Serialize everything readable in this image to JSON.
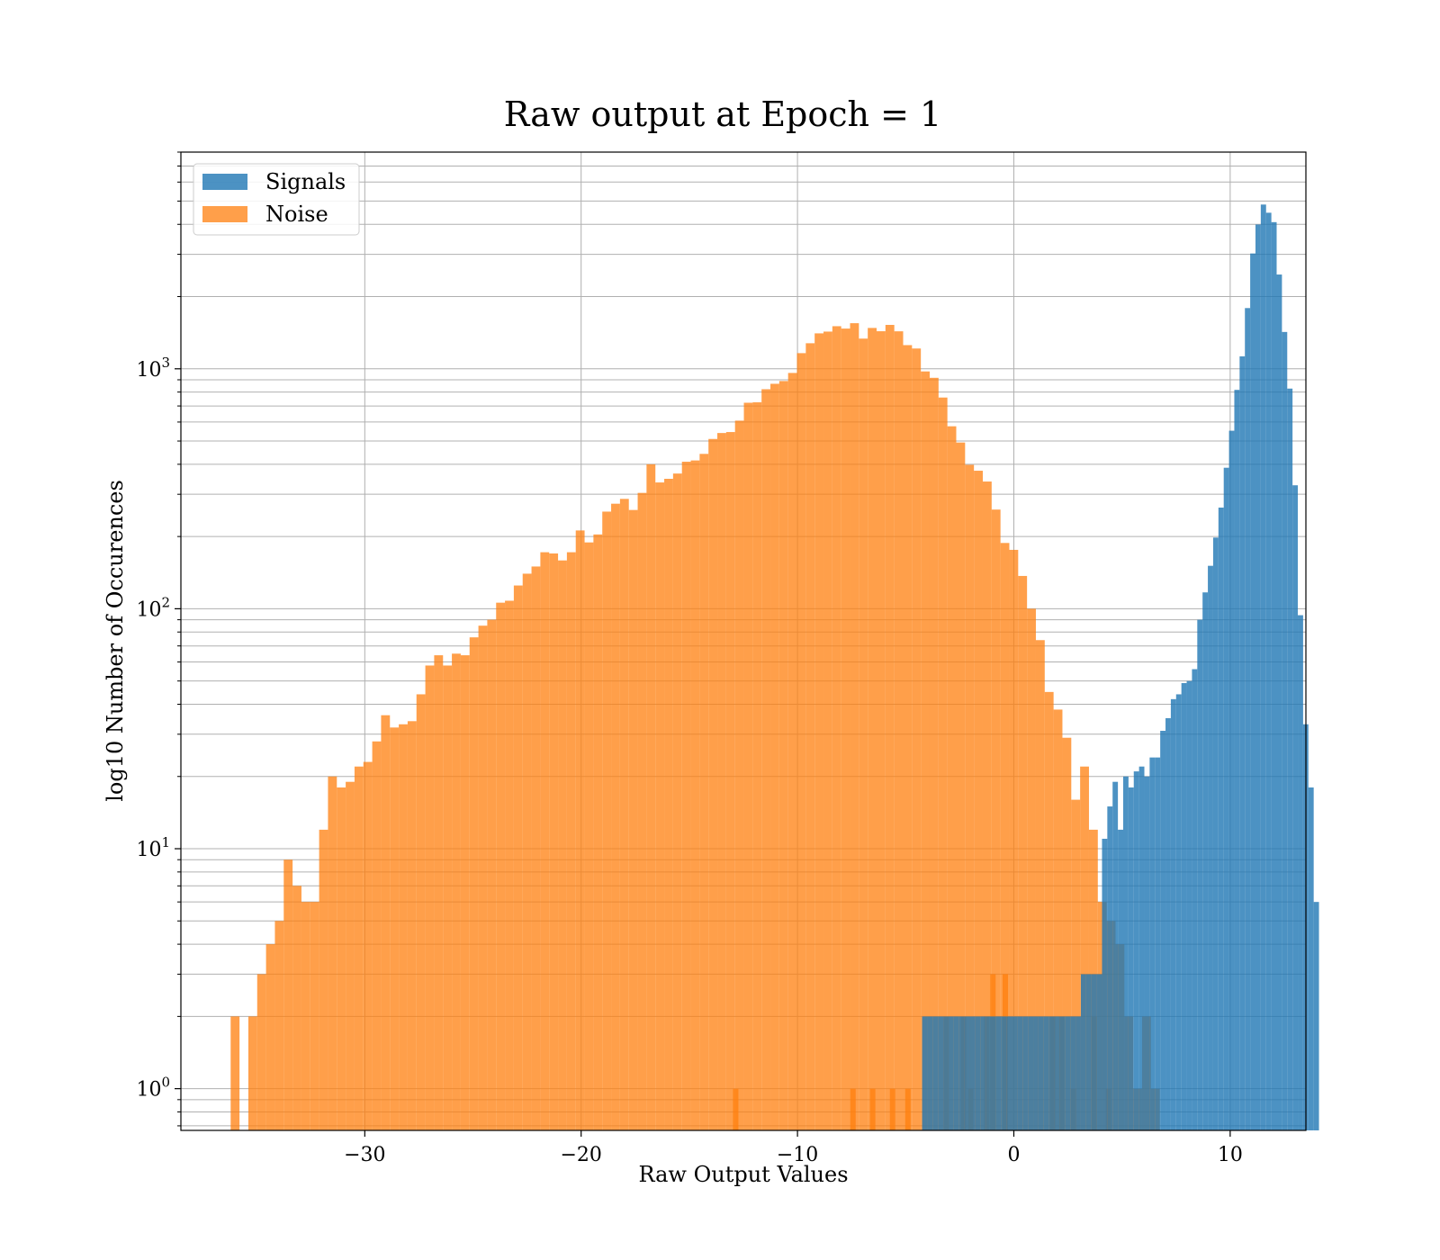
{
  "chart_data": {
    "type": "bar",
    "title": "Raw output at Epoch = 1",
    "xlabel": "Raw Output Values",
    "ylabel": "log10 Number of Occurences",
    "xlim": [
      -38.5,
      13.5
    ],
    "ylim": [
      0.67,
      8000
    ],
    "yscale": "log",
    "grid": true,
    "legend_position": "top-left",
    "x_ticks": [
      {
        "value": -30,
        "label": "−30"
      },
      {
        "value": -20,
        "label": "−20"
      },
      {
        "value": -10,
        "label": "−10"
      },
      {
        "value": 0,
        "label": "0"
      },
      {
        "value": 10,
        "label": "10"
      }
    ],
    "y_ticks": [
      {
        "value": 1,
        "base": "10",
        "exp": "0"
      },
      {
        "value": 10,
        "base": "10",
        "exp": "1"
      },
      {
        "value": 100,
        "base": "10",
        "exp": "2"
      },
      {
        "value": 1000,
        "base": "10",
        "exp": "3"
      }
    ],
    "series": [
      {
        "name": "Noise",
        "color": "#ff7f0e",
        "opacity": 0.75,
        "bin_start": -36.2,
        "bin_width": 0.409,
        "values": [
          2,
          0,
          2,
          3,
          4,
          5,
          9,
          7,
          6,
          6,
          12,
          20,
          18,
          19,
          22,
          23,
          28,
          36,
          32,
          33,
          34,
          44,
          58,
          64,
          58,
          65,
          64,
          76,
          85,
          90,
          106,
          108,
          125,
          140,
          150,
          172,
          170,
          159,
          172,
          212,
          189,
          204,
          254,
          274,
          287,
          258,
          304,
          400,
          336,
          348,
          366,
          410,
          415,
          442,
          510,
          540,
          545,
          608,
          722,
          725,
          822,
          866,
          889,
          961,
          1162,
          1278,
          1405,
          1429,
          1505,
          1471,
          1549,
          1336,
          1480,
          1434,
          1524,
          1433,
          1255,
          1215,
          975,
          917,
          759,
          576,
          493,
          398,
          376,
          339,
          259,
          188,
          176,
          137,
          100,
          74,
          45,
          38,
          29,
          16,
          22,
          12,
          6,
          5,
          4,
          2,
          1,
          2,
          1
        ],
        "sparse_bins": [
          [
            -12.98,
            1
          ],
          [
            -7.56,
            1
          ],
          [
            -6.65,
            1
          ],
          [
            -5.73,
            1
          ],
          [
            -5.02,
            1
          ],
          [
            -3.25,
            2
          ],
          [
            -2.45,
            2
          ],
          [
            -2.12,
            1
          ],
          [
            -1.38,
            2
          ],
          [
            -1.09,
            3
          ],
          [
            -0.52,
            3
          ],
          [
            1.67,
            2
          ],
          [
            2.09,
            2
          ],
          [
            2.63,
            1
          ],
          [
            3.59,
            2
          ],
          [
            4.25,
            1
          ]
        ]
      },
      {
        "name": "Signals",
        "color": "#1f77b4",
        "opacity": 0.8,
        "bin_start": -4.24,
        "bin_width": 0.2446,
        "values": [
          2,
          2,
          2,
          2,
          2,
          2,
          2,
          2,
          2,
          2,
          2,
          2,
          2,
          2,
          2,
          2,
          2,
          2,
          2,
          2,
          2,
          2,
          2,
          2,
          2,
          2,
          2,
          2,
          2,
          2,
          3,
          3,
          3,
          3,
          11,
          15,
          19,
          12,
          20,
          18,
          21,
          22,
          20,
          24,
          24,
          31,
          35,
          42,
          44,
          49,
          50,
          56,
          90,
          117,
          151,
          198,
          264,
          387,
          552,
          817,
          1127,
          1791,
          3024,
          3993,
          4836,
          4471,
          4085,
          2471,
          1424,
          827,
          327,
          94,
          33,
          18,
          6
        ],
        "sparse_bins": []
      }
    ]
  }
}
